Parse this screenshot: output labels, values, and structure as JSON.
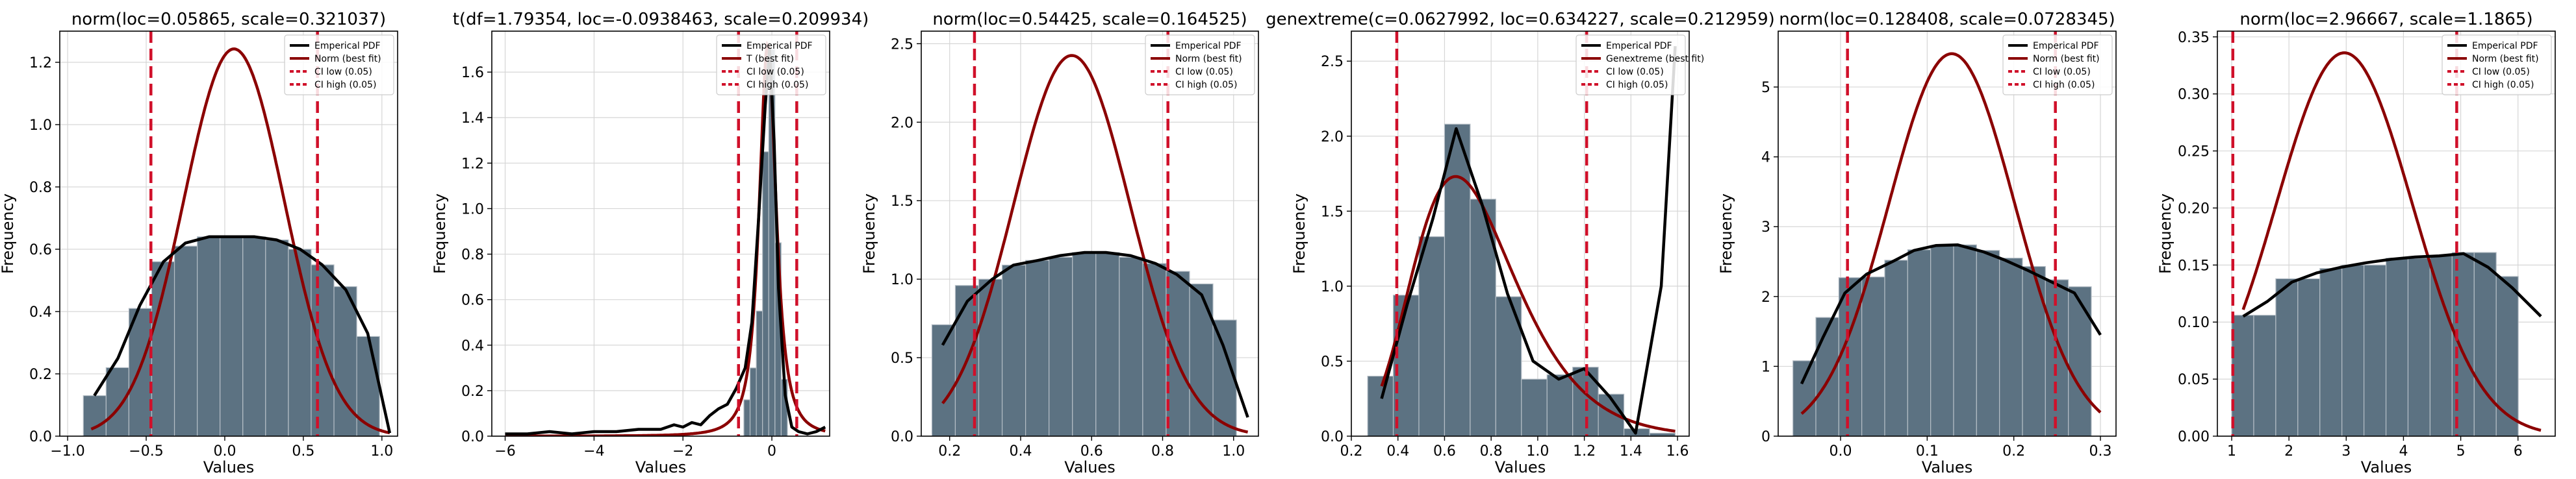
{
  "chart_data": [
    {
      "type": "bar",
      "title": "norm(loc=0.05865, scale=0.321037)",
      "xlabel": "Values",
      "ylabel": "Frequency",
      "xlim": [
        -1.05,
        1.1
      ],
      "ylim": [
        0,
        1.3
      ],
      "xticks": [
        -1.0,
        -0.5,
        0.0,
        0.5,
        1.0
      ],
      "xticklabels": [
        "−1.0",
        "−0.5",
        "0.0",
        "0.5",
        "1.0"
      ],
      "yticks": [
        0,
        0.2,
        0.4,
        0.6,
        0.8,
        1.0,
        1.2
      ],
      "yticklabels": [
        "0.0",
        "0.2",
        "0.4",
        "0.6",
        "0.8",
        "1.0",
        "1.2"
      ],
      "grid": true,
      "legend_position": "top-right",
      "legend": [
        "Emperical PDF",
        "Norm (best fit)",
        "CI low (0.05)",
        "CI high (0.05)"
      ],
      "histogram": {
        "edges": [
          -0.9,
          -0.755,
          -0.61,
          -0.465,
          -0.32,
          -0.175,
          -0.03,
          0.115,
          0.26,
          0.405,
          0.55,
          0.695,
          0.84,
          0.985
        ],
        "counts": [
          0.13,
          0.22,
          0.41,
          0.56,
          0.61,
          0.64,
          0.64,
          0.64,
          0.63,
          0.6,
          0.55,
          0.48,
          0.32
        ]
      },
      "empirical_pdf": {
        "x": [
          -0.83,
          -0.68,
          -0.54,
          -0.39,
          -0.25,
          -0.1,
          0.04,
          0.19,
          0.33,
          0.48,
          0.62,
          0.77,
          0.91,
          1.05
        ],
        "y": [
          0.13,
          0.25,
          0.42,
          0.56,
          0.62,
          0.64,
          0.64,
          0.64,
          0.63,
          0.6,
          0.55,
          0.47,
          0.33,
          0.01
        ]
      },
      "fit": {
        "dist": "norm",
        "loc": 0.05865,
        "scale": 0.321037,
        "peak": 1.243,
        "xrange": [
          -0.85,
          1.05
        ]
      },
      "ci_low": -0.47,
      "ci_high": 0.59
    },
    {
      "type": "bar",
      "title": "t(df=1.79354, loc=-0.0938463, scale=0.209934)",
      "xlabel": "Values",
      "ylabel": "Frequency",
      "xlim": [
        -6.3,
        1.3
      ],
      "ylim": [
        0,
        1.78
      ],
      "xticks": [
        -6,
        -4,
        -2,
        0
      ],
      "xticklabels": [
        "−6",
        "−4",
        "−2",
        "0"
      ],
      "yticks": [
        0,
        0.2,
        0.4,
        0.6,
        0.8,
        1.0,
        1.2,
        1.4,
        1.6
      ],
      "yticklabels": [
        "0.0",
        "0.2",
        "0.4",
        "0.6",
        "0.8",
        "1.0",
        "1.2",
        "1.4",
        "1.6"
      ],
      "grid": true,
      "legend_position": "top-right",
      "legend": [
        "Emperical PDF",
        "T (best fit)",
        "CI low (0.05)",
        "CI high (0.05)"
      ],
      "histogram": {
        "edges": [
          -0.63,
          -0.49,
          -0.35,
          -0.21,
          -0.07,
          0.07,
          0.21,
          0.35
        ],
        "counts": [
          0.16,
          0.3,
          0.55,
          1.25,
          1.7,
          0.85,
          0.25
        ]
      },
      "empirical_pdf": {
        "x": [
          -6.0,
          -5.5,
          -5.0,
          -4.5,
          -4.0,
          -3.5,
          -3.0,
          -2.5,
          -2.2,
          -2.0,
          -1.8,
          -1.6,
          -1.4,
          -1.2,
          -1.0,
          -0.8,
          -0.6,
          -0.45,
          -0.3,
          -0.15,
          -0.05,
          0.05,
          0.15,
          0.3,
          0.45,
          0.6,
          0.8,
          1.0,
          1.2
        ],
        "y": [
          0.01,
          0.01,
          0.02,
          0.01,
          0.02,
          0.02,
          0.03,
          0.03,
          0.05,
          0.04,
          0.06,
          0.05,
          0.09,
          0.12,
          0.14,
          0.21,
          0.3,
          0.5,
          0.95,
          1.45,
          1.7,
          1.3,
          0.65,
          0.18,
          0.04,
          0.02,
          0.01,
          0.02,
          0.04
        ]
      },
      "fit": {
        "dist": "t",
        "df": 1.79354,
        "loc": -0.0938463,
        "scale": 0.209934,
        "peak": 1.72,
        "xrange": [
          -6.0,
          1.2
        ]
      },
      "ci_low": -0.75,
      "ci_high": 0.56
    },
    {
      "type": "bar",
      "title": "norm(loc=0.54425, scale=0.164525)",
      "xlabel": "Values",
      "ylabel": "Frequency",
      "xlim": [
        0.12,
        1.07
      ],
      "ylim": [
        0,
        2.58
      ],
      "xticks": [
        0.2,
        0.4,
        0.6,
        0.8,
        1.0
      ],
      "xticklabels": [
        "0.2",
        "0.4",
        "0.6",
        "0.8",
        "1.0"
      ],
      "yticks": [
        0,
        0.5,
        1.0,
        1.5,
        2.0,
        2.5
      ],
      "yticklabels": [
        "0.0",
        "0.5",
        "1.0",
        "1.5",
        "2.0",
        "2.5"
      ],
      "grid": true,
      "legend_position": "top-right",
      "legend": [
        "Emperical PDF",
        "Norm (best fit)",
        "CI low (0.05)",
        "CI high (0.05)"
      ],
      "histogram": {
        "edges": [
          0.15,
          0.216,
          0.282,
          0.348,
          0.414,
          0.48,
          0.546,
          0.612,
          0.678,
          0.744,
          0.81,
          0.876,
          0.942,
          1.008
        ],
        "counts": [
          0.71,
          0.96,
          1.0,
          1.09,
          1.12,
          1.14,
          1.17,
          1.17,
          1.14,
          1.1,
          1.05,
          0.97,
          0.74
        ]
      },
      "empirical_pdf": {
        "x": [
          0.18,
          0.25,
          0.32,
          0.38,
          0.45,
          0.51,
          0.58,
          0.64,
          0.71,
          0.78,
          0.84,
          0.91,
          0.97,
          1.04
        ],
        "y": [
          0.58,
          0.86,
          1.0,
          1.09,
          1.12,
          1.15,
          1.17,
          1.17,
          1.15,
          1.1,
          1.03,
          0.9,
          0.58,
          0.12
        ]
      },
      "fit": {
        "dist": "norm",
        "loc": 0.54425,
        "scale": 0.164525,
        "peak": 2.425,
        "xrange": [
          0.18,
          1.04
        ]
      },
      "ci_low": 0.27,
      "ci_high": 0.815
    },
    {
      "type": "bar",
      "title": "genextreme(c=0.0627992, loc=0.634227, scale=0.212959)",
      "xlabel": "Values",
      "ylabel": "Frequency",
      "xlim": [
        0.2,
        1.65
      ],
      "ylim": [
        0,
        2.7
      ],
      "xticks": [
        0.2,
        0.4,
        0.6,
        0.8,
        1.0,
        1.2,
        1.4,
        1.6
      ],
      "xticklabels": [
        "0.2",
        "0.4",
        "0.6",
        "0.8",
        "1.0",
        "1.2",
        "1.4",
        "1.6"
      ],
      "yticks": [
        0,
        0.5,
        1.0,
        1.5,
        2.0,
        2.5
      ],
      "yticklabels": [
        "0.0",
        "0.5",
        "1.0",
        "1.5",
        "2.0",
        "2.5"
      ],
      "grid": true,
      "legend_position": "top-right",
      "legend": [
        "Emperical PDF",
        "Genextreme (best fit)",
        "CI low (0.05)",
        "CI high (0.05)"
      ],
      "histogram": {
        "edges": [
          0.27,
          0.38,
          0.49,
          0.6,
          0.71,
          0.82,
          0.93,
          1.04,
          1.15,
          1.26,
          1.37,
          1.48,
          1.59
        ],
        "counts": [
          0.4,
          0.94,
          1.33,
          2.08,
          1.58,
          0.93,
          0.38,
          0.41,
          0.46,
          0.28,
          0.05,
          0.02
        ]
      },
      "empirical_pdf": {
        "x": [
          0.33,
          0.44,
          0.55,
          0.65,
          0.76,
          0.87,
          0.98,
          1.09,
          1.2,
          1.31,
          1.42,
          1.53,
          1.59
        ],
        "y": [
          0.25,
          0.88,
          1.45,
          2.05,
          1.55,
          0.95,
          0.5,
          0.38,
          0.45,
          0.26,
          0.02,
          1.0,
          2.6
        ]
      },
      "fit": {
        "dist": "genextreme",
        "c": 0.0627992,
        "loc": 0.634227,
        "scale": 0.212959,
        "xrange": [
          0.33,
          1.59
        ]
      },
      "ci_low": 0.395,
      "ci_high": 1.21
    },
    {
      "type": "bar",
      "title": "norm(loc=0.128408, scale=0.0728345)",
      "xlabel": "Values",
      "ylabel": "Frequency",
      "xlim": [
        -0.072,
        0.318
      ],
      "ylim": [
        0,
        5.8
      ],
      "xticks": [
        0.0,
        0.1,
        0.2,
        0.3
      ],
      "xticklabels": [
        "0.0",
        "0.1",
        "0.2",
        "0.3"
      ],
      "yticks": [
        0,
        1,
        2,
        3,
        4,
        5
      ],
      "yticklabels": [
        "0",
        "1",
        "2",
        "3",
        "4",
        "5"
      ],
      "grid": true,
      "legend_position": "top-right",
      "legend": [
        "Emperical PDF",
        "Norm (best fit)",
        "CI low (0.05)",
        "CI high (0.05)"
      ],
      "histogram": {
        "edges": [
          -0.055,
          -0.0285,
          -0.002,
          0.0245,
          0.051,
          0.0775,
          0.104,
          0.1305,
          0.157,
          0.1835,
          0.21,
          0.2365,
          0.263,
          0.2895
        ],
        "counts": [
          1.08,
          1.7,
          2.27,
          2.28,
          2.52,
          2.67,
          2.73,
          2.74,
          2.66,
          2.55,
          2.43,
          2.24,
          2.14
        ]
      },
      "empirical_pdf": {
        "x": [
          -0.045,
          -0.02,
          0.005,
          0.03,
          0.06,
          0.085,
          0.11,
          0.135,
          0.165,
          0.19,
          0.215,
          0.245,
          0.27,
          0.3
        ],
        "y": [
          0.75,
          1.42,
          2.05,
          2.32,
          2.5,
          2.66,
          2.73,
          2.74,
          2.64,
          2.52,
          2.38,
          2.2,
          2.05,
          1.45
        ]
      },
      "fit": {
        "dist": "norm",
        "loc": 0.128408,
        "scale": 0.0728345,
        "peak": 5.477,
        "xrange": [
          -0.045,
          0.3
        ]
      },
      "ci_low": 0.008,
      "ci_high": 0.248
    },
    {
      "type": "bar",
      "title": "norm(loc=2.96667, scale=1.1865)",
      "xlabel": "Values",
      "ylabel": "Frequency",
      "xlim": [
        0.75,
        6.65
      ],
      "ylim": [
        0,
        0.355
      ],
      "xticks": [
        1,
        2,
        3,
        4,
        5,
        6
      ],
      "xticklabels": [
        "1",
        "2",
        "3",
        "4",
        "5",
        "6"
      ],
      "yticks": [
        0,
        0.05,
        0.1,
        0.15,
        0.2,
        0.25,
        0.3,
        0.35
      ],
      "yticklabels": [
        "0.00",
        "0.05",
        "0.10",
        "0.15",
        "0.20",
        "0.25",
        "0.30",
        "0.35"
      ],
      "grid": true,
      "legend_position": "top-right",
      "legend": [
        "Emperical PDF",
        "Norm (best fit)",
        "CI low (0.05)",
        "CI high (0.05)"
      ],
      "histogram": {
        "edges": [
          1.0,
          1.385,
          1.77,
          2.155,
          2.54,
          2.925,
          3.31,
          3.695,
          4.08,
          4.465,
          4.85,
          5.235,
          5.62,
          6.005
        ],
        "counts": [
          0.106,
          0.106,
          0.138,
          0.138,
          0.147,
          0.15,
          0.15,
          0.156,
          0.156,
          0.158,
          0.161,
          0.161,
          0.14
        ]
      },
      "empirical_pdf": {
        "x": [
          1.2,
          1.62,
          2.05,
          2.48,
          2.9,
          3.35,
          3.78,
          4.2,
          4.62,
          5.05,
          5.48,
          5.9,
          6.4
        ],
        "y": [
          0.105,
          0.118,
          0.135,
          0.143,
          0.148,
          0.152,
          0.155,
          0.157,
          0.158,
          0.16,
          0.148,
          0.13,
          0.105
        ]
      },
      "fit": {
        "dist": "norm",
        "loc": 2.96667,
        "scale": 1.1865,
        "peak": 0.336,
        "xrange": [
          1.2,
          6.4
        ]
      },
      "ci_low": 1.02,
      "ci_high": 4.93
    }
  ],
  "colors": {
    "bar_fill": "#5c7282",
    "bar_edge": "#b5bec6",
    "empirical": "#000000",
    "fit": "#8b0000",
    "ci": "#d0102a",
    "grid": "#d6d6d6"
  }
}
